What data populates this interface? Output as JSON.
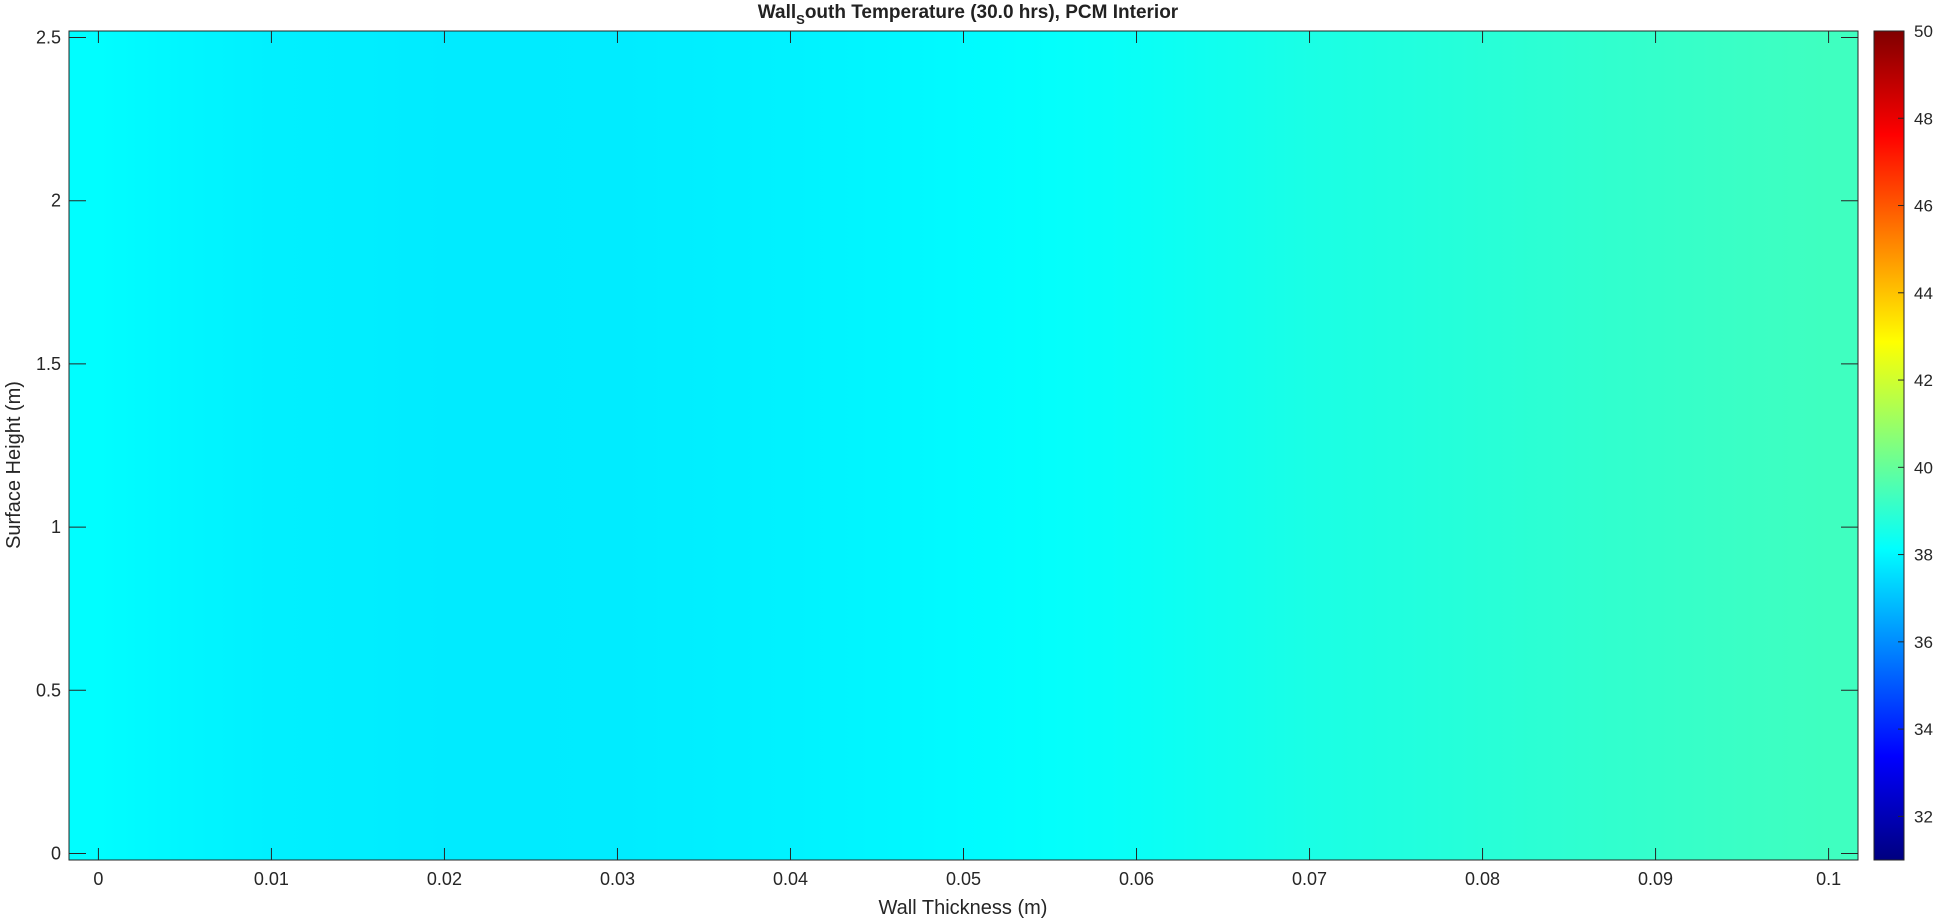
{
  "chart_data": {
    "type": "heatmap",
    "title_main": "Wall",
    "title_sub": "S",
    "title_rest": "outh  Temperature  (30.0  hrs),  PCM  Interior",
    "xlabel": "Wall Thickness (m)",
    "ylabel": "Surface Height (m)",
    "xlim": [
      -0.0017,
      0.1017
    ],
    "ylim": [
      -0.02,
      2.52
    ],
    "xticks": [
      0,
      0.01,
      0.02,
      0.03,
      0.04,
      0.05,
      0.06,
      0.07,
      0.08,
      0.09,
      0.1
    ],
    "xtick_labels": [
      "0",
      "0.01",
      "0.02",
      "0.03",
      "0.04",
      "0.05",
      "0.06",
      "0.07",
      "0.08",
      "0.09",
      "0.1"
    ],
    "yticks": [
      0,
      0.5,
      1,
      1.5,
      2,
      2.5
    ],
    "ytick_labels": [
      "0",
      "0.5",
      "1",
      "1.5",
      "2",
      "2.5"
    ],
    "colormap": "jet",
    "clim": [
      31,
      50
    ],
    "colorbar_ticks": [
      32,
      34,
      36,
      38,
      40,
      42,
      44,
      46,
      48,
      50
    ],
    "colorbar_labels": [
      "32",
      "34",
      "36",
      "38",
      "40",
      "42",
      "44",
      "46",
      "48",
      "50"
    ],
    "x": [
      0,
      0.005,
      0.01,
      0.015,
      0.02,
      0.025,
      0.03,
      0.035,
      0.04,
      0.045,
      0.05,
      0.055,
      0.06,
      0.065,
      0.07,
      0.075,
      0.08,
      0.085,
      0.09,
      0.095,
      0.1
    ],
    "temperature_by_x": [
      38.1,
      37.95,
      37.85,
      37.8,
      37.75,
      37.75,
      37.78,
      37.82,
      37.88,
      37.95,
      38.05,
      38.18,
      38.3,
      38.45,
      38.6,
      38.72,
      38.85,
      38.98,
      39.1,
      39.2,
      39.3
    ],
    "grid": false
  }
}
